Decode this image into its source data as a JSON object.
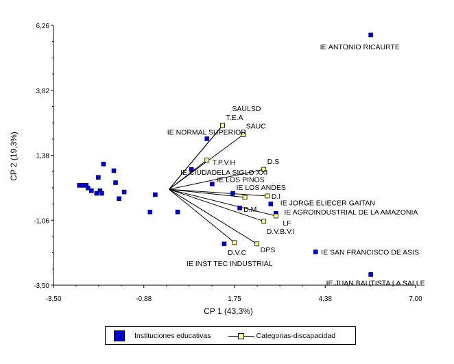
{
  "chart_data": {
    "type": "scatter",
    "xlabel": "CP 1 (43,3%)",
    "ylabel": "CP 2 (19,3%)",
    "xlim": [
      -3.5,
      7.0
    ],
    "ylim": [
      -3.5,
      6.26
    ],
    "xticks": [
      "-3,50",
      "-0,88",
      "1,75",
      "4,38",
      "7,00"
    ],
    "xtick_values": [
      -3.5,
      -0.88,
      1.75,
      4.38,
      7.0
    ],
    "yticks": [
      "6,26",
      "3,82",
      "1,38",
      "-1,06",
      "-3,50"
    ],
    "ytick_values": [
      6.26,
      3.82,
      1.38,
      -1.06,
      -3.5
    ],
    "legend_position": "bottom",
    "series": [
      {
        "name": "Instituciones educativas",
        "color": "#0000cc",
        "marker": "square",
        "points": [
          {
            "x": 5.7,
            "y": 5.9,
            "label": "IE ANTONIO RICAURTE"
          },
          {
            "x": 0.95,
            "y": 2.0,
            "label": "IE NORMAL SUPERIOR"
          },
          {
            "x": 0.5,
            "y": 0.85,
            "label": "IE CIUDADELA SIGLO XXI"
          },
          {
            "x": 1.1,
            "y": 0.3,
            "label": "IE LOS PINOS"
          },
          {
            "x": 1.7,
            "y": -0.05,
            "label": "IE LOS ANDES"
          },
          {
            "x": 2.8,
            "y": -0.45,
            "label": "IE JORGE ELIECER GAITAN"
          },
          {
            "x": 2.95,
            "y": -0.8,
            "label": "IE AGROINDUSTRIAL DE LA AMAZONIA"
          },
          {
            "x": 1.9,
            "y": -0.6,
            "label": ""
          },
          {
            "x": 1.45,
            "y": -1.95,
            "label": "IE INST TEC INDUSTRIAL"
          },
          {
            "x": 4.1,
            "y": -2.25,
            "label": "IE SAN FRANCISCO DE ASIS"
          },
          {
            "x": 5.7,
            "y": -3.1,
            "label": "IE JUAN BAUTISTA LA SALLE"
          },
          {
            "x": -2.75,
            "y": 0.25,
            "label": ""
          },
          {
            "x": -2.65,
            "y": 0.25,
            "label": ""
          },
          {
            "x": -2.55,
            "y": 0.25,
            "label": ""
          },
          {
            "x": -2.5,
            "y": 0.15,
            "label": ""
          },
          {
            "x": -2.4,
            "y": 0.05,
            "label": ""
          },
          {
            "x": -2.25,
            "y": -0.05,
            "label": ""
          },
          {
            "x": -2.15,
            "y": 0.05,
            "label": ""
          },
          {
            "x": -2.1,
            "y": -0.05,
            "label": ""
          },
          {
            "x": -2.05,
            "y": 1.05,
            "label": ""
          },
          {
            "x": -2.2,
            "y": 0.55,
            "label": ""
          },
          {
            "x": -1.75,
            "y": 0.8,
            "label": ""
          },
          {
            "x": -1.7,
            "y": 0.35,
            "label": ""
          },
          {
            "x": -1.6,
            "y": -0.25,
            "label": ""
          },
          {
            "x": -1.45,
            "y": 0.0,
            "label": ""
          },
          {
            "x": -0.55,
            "y": -0.1,
            "label": ""
          },
          {
            "x": -0.7,
            "y": -0.75,
            "label": ""
          },
          {
            "x": 0.1,
            "y": -0.75,
            "label": ""
          }
        ]
      },
      {
        "name": "Categorias-discapacidad",
        "color": "#ffff99",
        "marker": "biplot-vector",
        "origin": [
          -0.15,
          0.1
        ],
        "points": [
          {
            "x": 1.4,
            "y": 2.5,
            "label": "SAULSD"
          },
          {
            "x": 1.4,
            "y": 2.5,
            "label": "T.E.A"
          },
          {
            "x": 2.0,
            "y": 2.15,
            "label": "SAUC"
          },
          {
            "x": 0.95,
            "y": 1.2,
            "label": "T.P.V.H"
          },
          {
            "x": 2.6,
            "y": 0.85,
            "label": "D.S"
          },
          {
            "x": 2.7,
            "y": -0.15,
            "label": "D.I"
          },
          {
            "x": 2.05,
            "y": -0.2,
            "label": "D.M"
          },
          {
            "x": 2.95,
            "y": -0.9,
            "label": "LF"
          },
          {
            "x": 2.6,
            "y": -1.1,
            "label": "D.V.B.V.I"
          },
          {
            "x": 2.4,
            "y": -1.95,
            "label": "DPS"
          },
          {
            "x": 1.75,
            "y": -1.9,
            "label": "D.V.C"
          }
        ]
      }
    ]
  },
  "legend": {
    "items": [
      {
        "label": "Instituciones educativas"
      },
      {
        "label": "Categorias-discapacidad"
      }
    ]
  }
}
